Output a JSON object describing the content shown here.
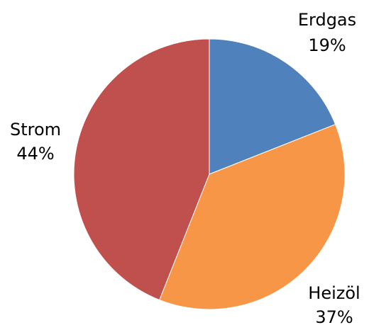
{
  "chart_data": {
    "type": "pie",
    "start_angle_deg": 0,
    "direction": "clockwise",
    "slices": [
      {
        "label": "Erdgas",
        "value": 19,
        "display": "19%",
        "color": "#4f81bd"
      },
      {
        "label": "Heizöl",
        "value": 37,
        "display": "37%",
        "color": "#f79646"
      },
      {
        "label": "Strom",
        "value": 44,
        "display": "44%",
        "color": "#c0504d"
      }
    ]
  }
}
